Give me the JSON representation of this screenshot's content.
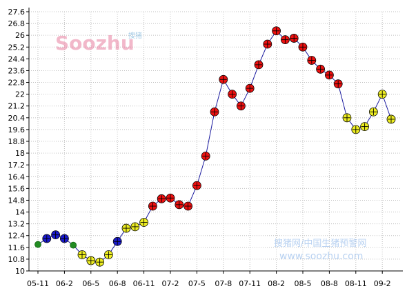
{
  "watermark": {
    "logo_text": "Soozhu",
    "logo_sub": "搜猪",
    "line1": "搜猪网/中国生猪预警网",
    "line2": "www.soozhu.com"
  },
  "colors": {
    "line": "#1a1a9e",
    "red": "#ee1111",
    "yellow": "#eeee22",
    "blue": "#1a1acc",
    "green": "#228b22",
    "grid": "#c0c0c0"
  },
  "chart_data": {
    "type": "line",
    "title": "",
    "xlabel": "",
    "ylabel": "",
    "ylim": [
      10,
      27.6
    ],
    "yticks": [
      "10",
      "10.8",
      "11.6",
      "12.4",
      "13.2",
      "14",
      "14.8",
      "15.6",
      "16.4",
      "17.2",
      "18",
      "18.8",
      "19.6",
      "20.4",
      "21.2",
      "22",
      "22.8",
      "23.6",
      "24.4",
      "25.2",
      "26",
      "26.8",
      "27.6"
    ],
    "xticks": [
      "05-11",
      "06-2",
      "06-5",
      "06-8",
      "06-11",
      "07-2",
      "07-5",
      "07-8",
      "07-11",
      "08-2",
      "08-5",
      "08-8",
      "08-11",
      "09-2"
    ],
    "grid": true,
    "points": [
      {
        "x": 0,
        "y": 11.8,
        "marker": "green"
      },
      {
        "x": 1,
        "y": 12.2,
        "marker": "blue"
      },
      {
        "x": 2,
        "y": 12.45,
        "marker": "blue"
      },
      {
        "x": 3,
        "y": 12.2,
        "marker": "blue"
      },
      {
        "x": 4,
        "y": 11.75,
        "marker": "green"
      },
      {
        "x": 5,
        "y": 11.1,
        "marker": "yellow"
      },
      {
        "x": 6,
        "y": 10.7,
        "marker": "yellow"
      },
      {
        "x": 7,
        "y": 10.6,
        "marker": "yellow"
      },
      {
        "x": 8,
        "y": 11.1,
        "marker": "yellow"
      },
      {
        "x": 9,
        "y": 12.0,
        "marker": "blue"
      },
      {
        "x": 10,
        "y": 12.9,
        "marker": "yellow"
      },
      {
        "x": 11,
        "y": 13.0,
        "marker": "yellow"
      },
      {
        "x": 12,
        "y": 13.3,
        "marker": "yellow"
      },
      {
        "x": 13,
        "y": 14.4,
        "marker": "red"
      },
      {
        "x": 14,
        "y": 14.9,
        "marker": "red"
      },
      {
        "x": 15,
        "y": 14.95,
        "marker": "red"
      },
      {
        "x": 16,
        "y": 14.5,
        "marker": "red"
      },
      {
        "x": 17,
        "y": 14.4,
        "marker": "red"
      },
      {
        "x": 18,
        "y": 15.8,
        "marker": "red"
      },
      {
        "x": 19,
        "y": 17.8,
        "marker": "red"
      },
      {
        "x": 20,
        "y": 20.8,
        "marker": "red"
      },
      {
        "x": 21,
        "y": 23.0,
        "marker": "red"
      },
      {
        "x": 22,
        "y": 22.0,
        "marker": "red"
      },
      {
        "x": 23,
        "y": 21.2,
        "marker": "red"
      },
      {
        "x": 24,
        "y": 22.4,
        "marker": "red"
      },
      {
        "x": 25,
        "y": 24.0,
        "marker": "red"
      },
      {
        "x": 26,
        "y": 25.4,
        "marker": "red"
      },
      {
        "x": 27,
        "y": 26.3,
        "marker": "red"
      },
      {
        "x": 28,
        "y": 25.7,
        "marker": "red"
      },
      {
        "x": 29,
        "y": 25.8,
        "marker": "red"
      },
      {
        "x": 30,
        "y": 25.2,
        "marker": "red"
      },
      {
        "x": 31,
        "y": 24.3,
        "marker": "red"
      },
      {
        "x": 32,
        "y": 23.7,
        "marker": "red"
      },
      {
        "x": 33,
        "y": 23.3,
        "marker": "red"
      },
      {
        "x": 34,
        "y": 22.7,
        "marker": "red"
      },
      {
        "x": 35,
        "y": 20.4,
        "marker": "yellow"
      },
      {
        "x": 36,
        "y": 19.6,
        "marker": "yellow"
      },
      {
        "x": 37,
        "y": 19.8,
        "marker": "yellow"
      },
      {
        "x": 38,
        "y": 20.8,
        "marker": "yellow"
      },
      {
        "x": 39,
        "y": 22.0,
        "marker": "yellow"
      },
      {
        "x": 40,
        "y": 20.3,
        "marker": "yellow"
      }
    ]
  }
}
